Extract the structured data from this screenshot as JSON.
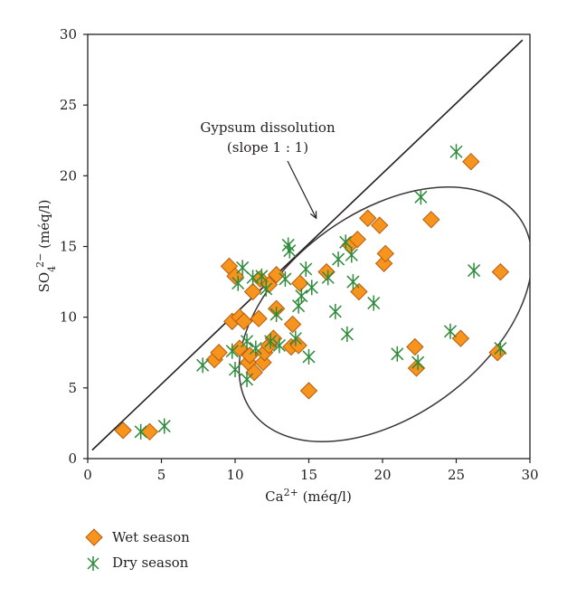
{
  "chart_data": {
    "type": "scatter",
    "xlabel": "Ca2+ (méq/l)",
    "xlabel_parts": {
      "base": "Ca",
      "sup": "2+",
      "unit": " (méq/l)"
    },
    "ylabel": "SO4 2− (méq/l)",
    "ylabel_parts": {
      "base": "SO",
      "sub": "4",
      "sup": "2−",
      "unit": " (méq/l)"
    },
    "xlim": [
      0,
      30
    ],
    "ylim": [
      0,
      30
    ],
    "xticks": [
      0,
      5,
      10,
      15,
      20,
      25,
      30
    ],
    "yticks": [
      0,
      5,
      10,
      15,
      20,
      25,
      30
    ],
    "grid": false,
    "legend_position": "bottom-left",
    "reference_line": {
      "from": [
        0.3,
        0.6
      ],
      "to": [
        29.5,
        29.6
      ]
    },
    "annotation": {
      "line1": "Gypsum dissolution",
      "line2": "(slope 1 : 1)",
      "arrow_to": [
        15.5,
        17
      ]
    },
    "ellipse": {
      "center": [
        20.2,
        10.2
      ],
      "rx": 11.2,
      "ry": 7.2,
      "rotation_deg": 36
    },
    "series": [
      {
        "name": "Wet season",
        "marker": "diamond",
        "color": "#f7941d",
        "edge_color": "#b35d10",
        "points": [
          [
            2.4,
            2.0
          ],
          [
            4.2,
            1.9
          ],
          [
            8.6,
            7.0
          ],
          [
            8.9,
            7.5
          ],
          [
            9.6,
            13.6
          ],
          [
            9.8,
            9.7
          ],
          [
            10.0,
            12.9
          ],
          [
            10.3,
            10.0
          ],
          [
            10.3,
            7.8
          ],
          [
            10.6,
            9.7
          ],
          [
            10.9,
            6.8
          ],
          [
            11.0,
            7.3
          ],
          [
            11.2,
            11.8
          ],
          [
            11.3,
            6.1
          ],
          [
            11.6,
            9.9
          ],
          [
            11.7,
            12.7
          ],
          [
            11.9,
            6.8
          ],
          [
            12.0,
            7.5
          ],
          [
            12.3,
            12.3
          ],
          [
            12.3,
            8.0
          ],
          [
            12.6,
            8.5
          ],
          [
            12.8,
            13.0
          ],
          [
            12.8,
            10.6
          ],
          [
            13.9,
            9.5
          ],
          [
            13.8,
            7.9
          ],
          [
            14.3,
            8.0
          ],
          [
            14.4,
            12.4
          ],
          [
            15.0,
            4.8
          ],
          [
            16.2,
            13.2
          ],
          [
            17.8,
            15.1
          ],
          [
            18.3,
            15.5
          ],
          [
            18.4,
            11.8
          ],
          [
            19.0,
            17.0
          ],
          [
            19.8,
            16.5
          ],
          [
            20.1,
            13.8
          ],
          [
            20.2,
            14.5
          ],
          [
            22.2,
            7.9
          ],
          [
            22.3,
            6.4
          ],
          [
            23.3,
            16.9
          ],
          [
            25.3,
            8.5
          ],
          [
            26.0,
            21.0
          ],
          [
            27.8,
            7.5
          ],
          [
            28.0,
            13.2
          ]
        ]
      },
      {
        "name": "Dry season",
        "marker": "asterisk",
        "color": "#2e8b3a",
        "points": [
          [
            3.6,
            1.9
          ],
          [
            5.2,
            2.3
          ],
          [
            7.8,
            6.6
          ],
          [
            9.8,
            7.6
          ],
          [
            10.0,
            6.3
          ],
          [
            10.2,
            12.4
          ],
          [
            10.5,
            13.5
          ],
          [
            10.8,
            5.6
          ],
          [
            10.8,
            8.3
          ],
          [
            11.2,
            12.8
          ],
          [
            11.4,
            7.8
          ],
          [
            11.8,
            12.9
          ],
          [
            12.1,
            12.0
          ],
          [
            12.4,
            8.3
          ],
          [
            12.8,
            10.2
          ],
          [
            13.0,
            8.0
          ],
          [
            13.4,
            12.7
          ],
          [
            13.6,
            15.1
          ],
          [
            13.7,
            14.7
          ],
          [
            14.1,
            8.5
          ],
          [
            14.3,
            10.8
          ],
          [
            14.5,
            11.5
          ],
          [
            14.8,
            13.4
          ],
          [
            15.0,
            7.2
          ],
          [
            15.2,
            12.1
          ],
          [
            16.3,
            12.8
          ],
          [
            16.8,
            10.4
          ],
          [
            17.0,
            14.1
          ],
          [
            17.5,
            15.3
          ],
          [
            17.6,
            8.8
          ],
          [
            17.9,
            14.4
          ],
          [
            18.0,
            12.5
          ],
          [
            19.4,
            11.0
          ],
          [
            21.0,
            7.4
          ],
          [
            22.4,
            6.8
          ],
          [
            22.6,
            18.5
          ],
          [
            24.6,
            9.0
          ],
          [
            25.0,
            21.7
          ],
          [
            26.2,
            13.3
          ],
          [
            28.0,
            7.8
          ]
        ]
      }
    ]
  },
  "legend": {
    "items": [
      {
        "label": "Wet season"
      },
      {
        "label": "Dry season"
      }
    ]
  }
}
